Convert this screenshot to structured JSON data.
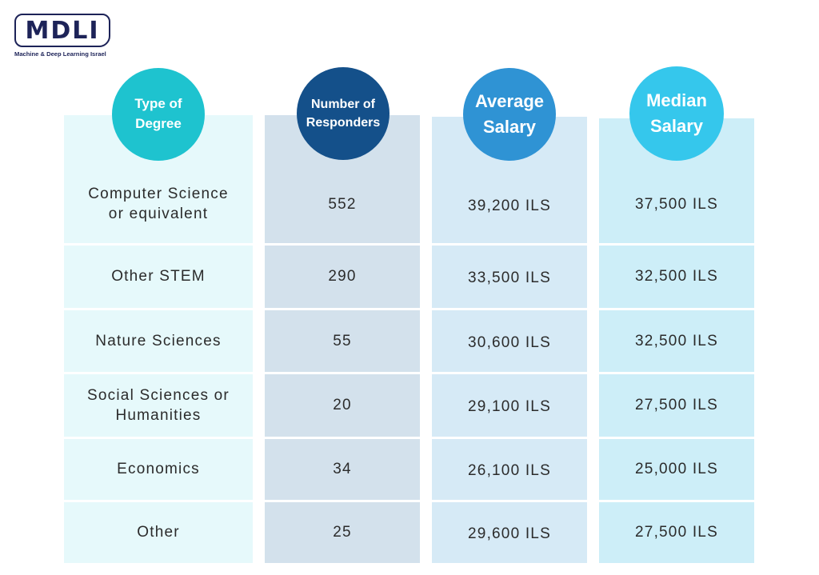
{
  "logo": {
    "text": "MDLI",
    "subtitle": "Machine & Deep Learning Israel"
  },
  "headers": {
    "degree": [
      "Type of",
      "Degree"
    ],
    "responders": [
      "Number of",
      "Responders"
    ],
    "average": [
      "Average",
      "Salary"
    ],
    "median": [
      "Median",
      "Salary"
    ]
  },
  "colors": {
    "degree_header": "#1ec3cf",
    "responders_header": "#14508a",
    "average_header": "#2f93d4",
    "median_header": "#35c7ec",
    "degree_col": "#e6f9fb",
    "responders_col": "#d3e1ec",
    "average_col": "#d6eaf6",
    "median_col": "#cdeef8"
  },
  "rows": [
    {
      "degree": "Computer Science\nor equivalent",
      "responders": "552",
      "average": "39,200 ILS",
      "median": "37,500 ILS"
    },
    {
      "degree": "Other STEM",
      "responders": "290",
      "average": "33,500 ILS",
      "median": "32,500 ILS"
    },
    {
      "degree": "Nature Sciences",
      "responders": "55",
      "average": "30,600 ILS",
      "median": "32,500 ILS"
    },
    {
      "degree": "Social Sciences or\nHumanities",
      "responders": "20",
      "average": "29,100 ILS",
      "median": "27,500 ILS"
    },
    {
      "degree": "Economics",
      "responders": "34",
      "average": "26,100 ILS",
      "median": "25,000 ILS"
    },
    {
      "degree": "Other",
      "responders": "25",
      "average": "29,600 ILS",
      "median": "27,500 ILS"
    }
  ]
}
